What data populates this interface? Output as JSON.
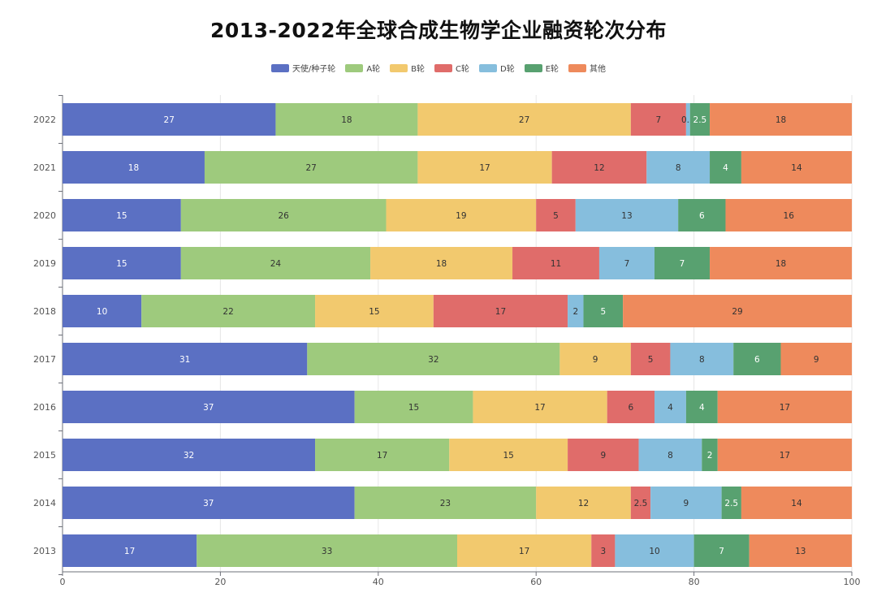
{
  "chart_data": {
    "type": "bar",
    "orientation": "horizontal",
    "stacked": true,
    "title": "2013-2022年全球合成生物学企业融资轮次分布",
    "xlim": [
      0,
      100
    ],
    "x_ticks": [
      0,
      20,
      40,
      60,
      80,
      100
    ],
    "grid": true,
    "legend_position": "top-center",
    "categories": [
      "2022",
      "2021",
      "2020",
      "2019",
      "2018",
      "2017",
      "2016",
      "2015",
      "2014",
      "2013"
    ],
    "series": [
      {
        "name": "天使/种子轮",
        "color": "#5b70c3",
        "label_color": "#ffffff",
        "values": [
          27,
          18,
          15,
          15,
          10,
          31,
          37,
          32,
          37,
          17
        ]
      },
      {
        "name": "A轮",
        "color": "#9eca7d",
        "label_color": "#333333",
        "values": [
          18,
          27,
          26,
          24,
          22,
          32,
          15,
          17,
          23,
          33
        ]
      },
      {
        "name": "B轮",
        "color": "#f2c96e",
        "label_color": "#333333",
        "values": [
          27,
          17,
          19,
          18,
          15,
          9,
          17,
          15,
          12,
          17
        ]
      },
      {
        "name": "C轮",
        "color": "#e06c6a",
        "label_color": "#333333",
        "values": [
          7,
          12,
          5,
          11,
          17,
          5,
          6,
          9,
          2.5,
          3
        ]
      },
      {
        "name": "D轮",
        "color": "#86bedd",
        "label_color": "#333333",
        "values": [
          0.5,
          8,
          13,
          7,
          2,
          8,
          4,
          8,
          9,
          10
        ]
      },
      {
        "name": "E轮",
        "color": "#58a170",
        "label_color": "#ffffff",
        "values": [
          2.5,
          4,
          6,
          7,
          5,
          6,
          4,
          2,
          2.5,
          7
        ]
      },
      {
        "name": "其他",
        "color": "#ee8a5c",
        "label_color": "#333333",
        "values": [
          18,
          14,
          16,
          18,
          29,
          9,
          17,
          17,
          14,
          13
        ]
      }
    ]
  }
}
